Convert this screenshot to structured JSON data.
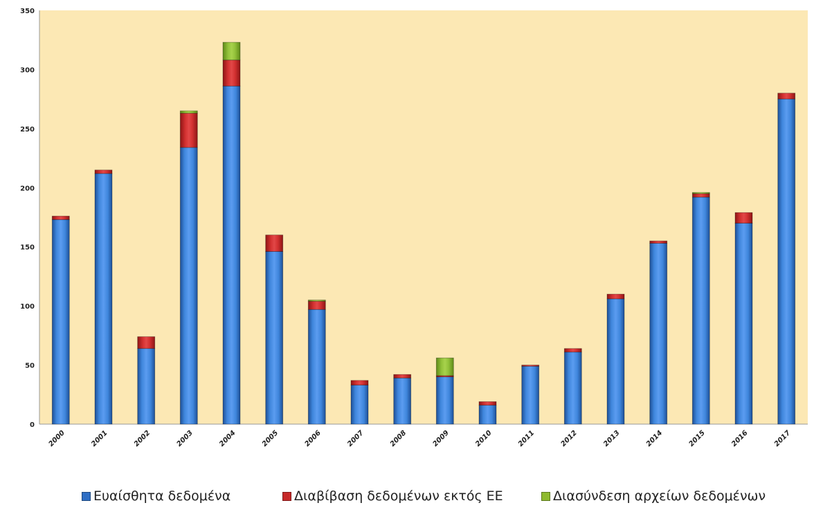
{
  "chart_data": {
    "type": "bar",
    "stacked": true,
    "title": "",
    "xlabel": "",
    "ylabel": "",
    "ylim": [
      0,
      350
    ],
    "yticks": [
      0,
      50,
      100,
      150,
      200,
      250,
      300,
      350
    ],
    "grid": false,
    "legend_position": "bottom",
    "plot_background": "#fce8b4",
    "categories": [
      "2000",
      "2001",
      "2002",
      "2003",
      "2004",
      "2005",
      "2006",
      "2007",
      "2008",
      "2009",
      "2010",
      "2011",
      "2012",
      "2013",
      "2014",
      "2015",
      "2016",
      "2017"
    ],
    "series": [
      {
        "name": "Ευαίσθητα δεδομένα",
        "color": "#2f6fc4",
        "values": [
          173,
          212,
          64,
          234,
          286,
          146,
          97,
          33,
          39,
          40,
          16,
          49,
          61,
          106,
          153,
          192,
          170,
          275
        ]
      },
      {
        "name": "Διαβίβαση δεδομένων εκτός ΕΕ",
        "color": "#c62828",
        "values": [
          3,
          3,
          10,
          29,
          22,
          14,
          7,
          4,
          3,
          1,
          3,
          1,
          3,
          4,
          2,
          3,
          9,
          5
        ]
      },
      {
        "name": "Διασύνδεση αρχείων δεδομένων",
        "color": "#8fba2f",
        "values": [
          0,
          0,
          0,
          2,
          15,
          0,
          1,
          0,
          0,
          15,
          0,
          0,
          0,
          0,
          0,
          1,
          0,
          0
        ]
      }
    ]
  }
}
